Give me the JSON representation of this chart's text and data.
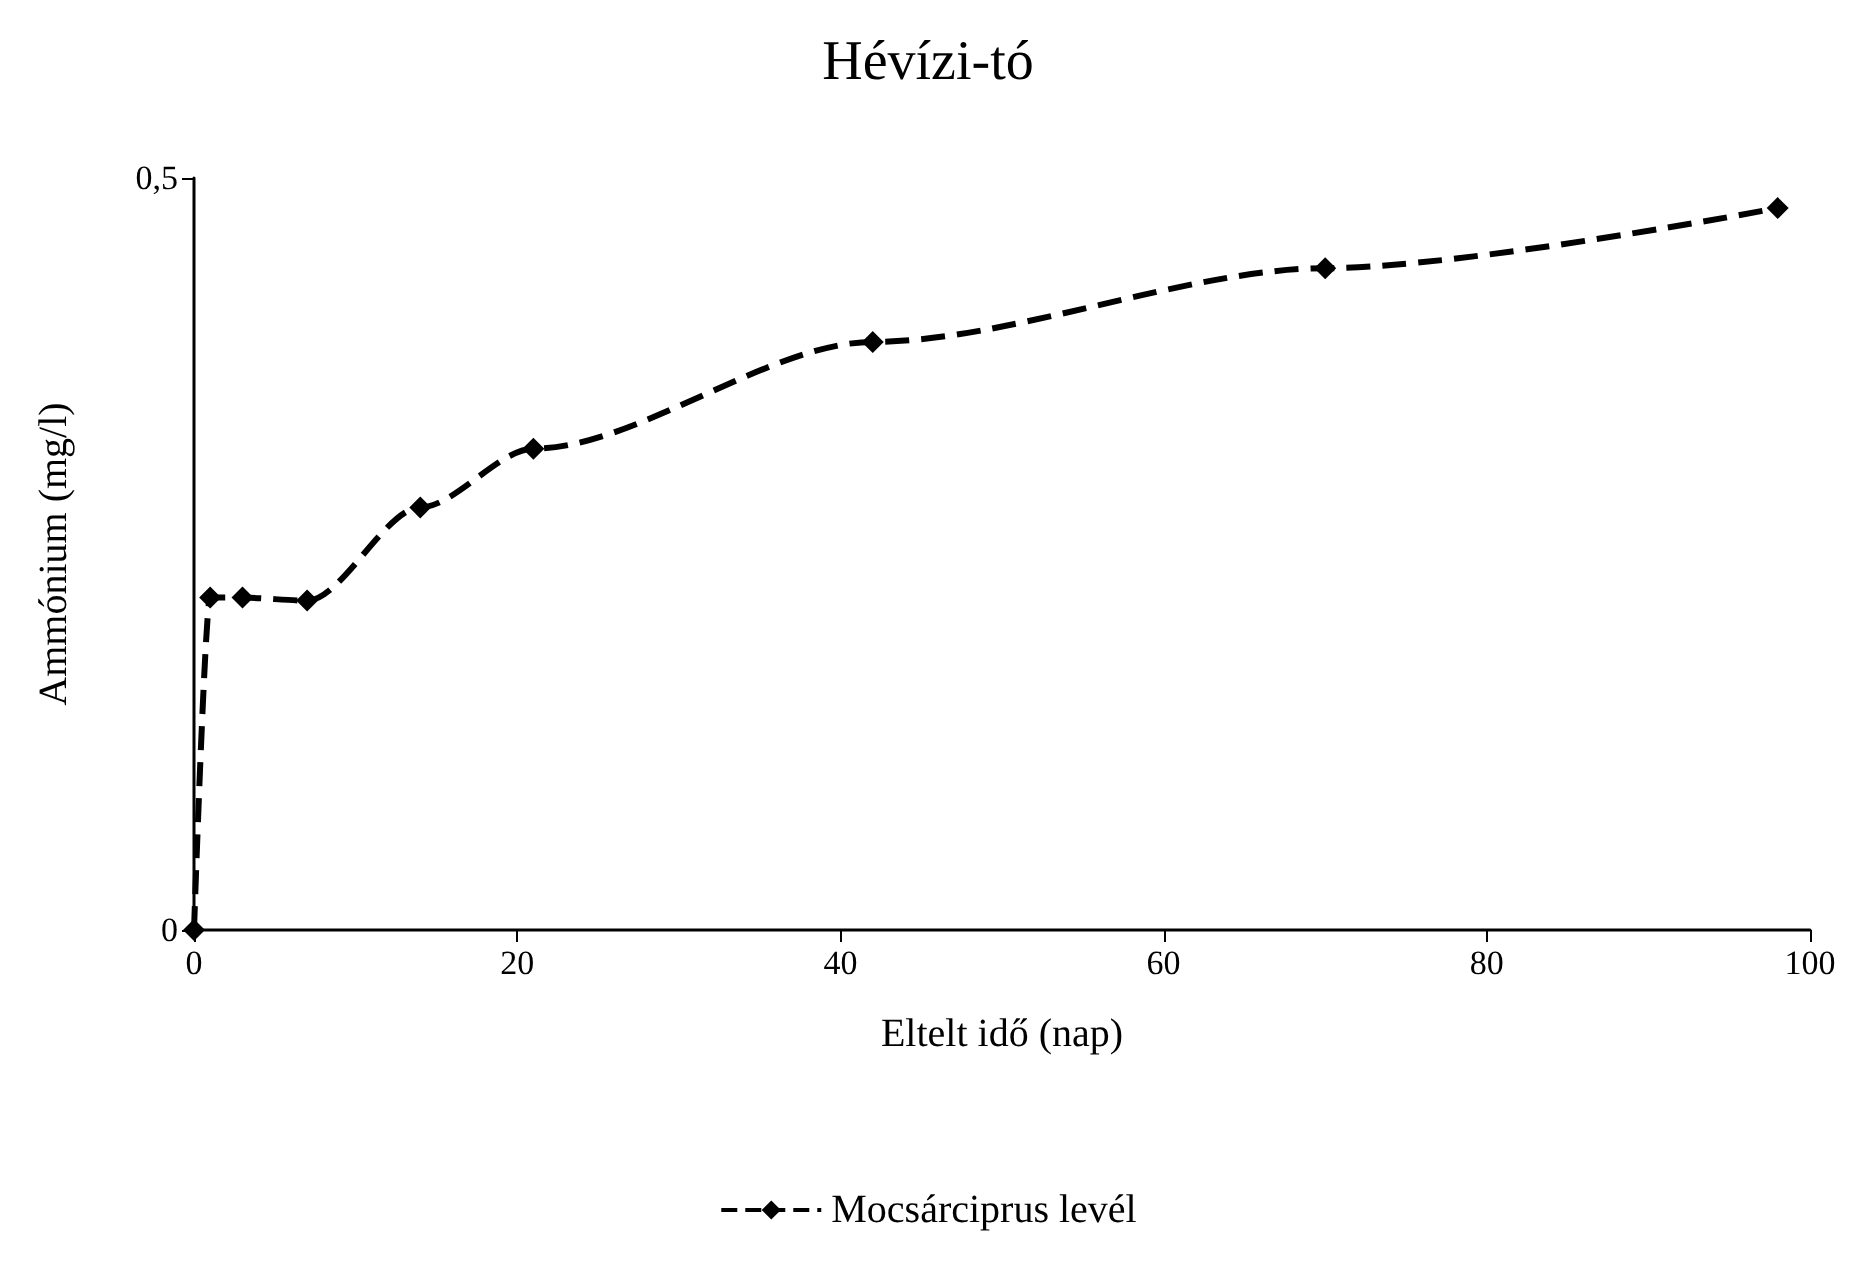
{
  "chart_data": {
    "type": "line",
    "title": "Hévízi-tó",
    "xlabel": "Eltelt idő (nap)",
    "ylabel": "Ammónium (mg/l)",
    "x": [
      0,
      1,
      3,
      7,
      14,
      21,
      42,
      70,
      98
    ],
    "series": [
      {
        "name": "Mocsárciprus levél",
        "color": "#000000",
        "values": [
          0,
          0.221,
          0.221,
          0.219,
          0.281,
          0.32,
          0.391,
          0.44,
          0.48
        ]
      }
    ],
    "xlim": [
      0,
      100
    ],
    "xticks": [
      0,
      20,
      40,
      60,
      80,
      100
    ],
    "ylim": [
      0,
      0.5
    ],
    "yticks": [
      {
        "value": 0,
        "label": "0"
      },
      {
        "value": 0.5,
        "label": "0,5"
      }
    ],
    "grid": false,
    "legend": "bottom",
    "marker": "diamond",
    "line_style": "dashed"
  }
}
